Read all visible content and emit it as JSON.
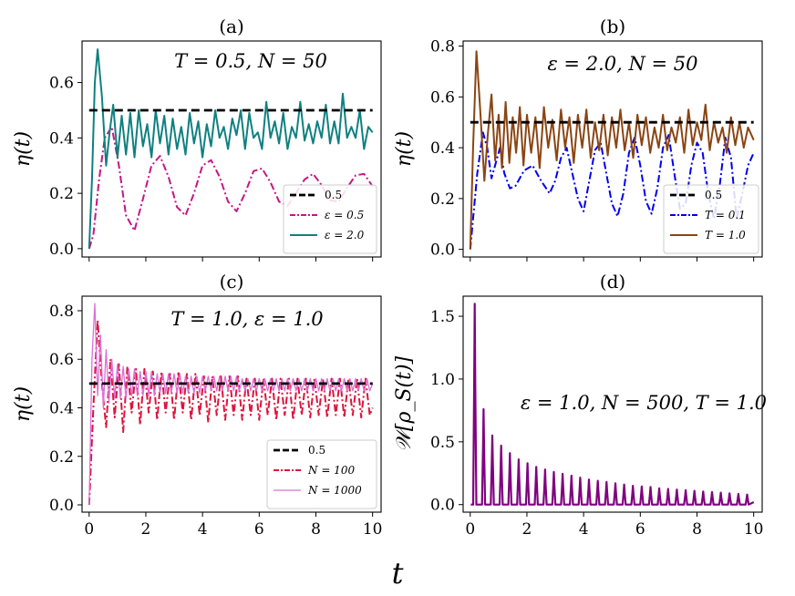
{
  "figure": {
    "shared_xlabel": "t"
  },
  "chart_data": [
    {
      "panel": "(a)",
      "type": "line",
      "title": "(a)",
      "annotation": "T = 0.5, N = 50",
      "ylabel": "η(t)",
      "xlim": [
        -0.25,
        10.3
      ],
      "ylim": [
        -0.03,
        0.75
      ],
      "xticks": [
        "0",
        "2",
        "4",
        "6",
        "8",
        "10"
      ],
      "show_xtick_labels": false,
      "yticks": [
        "0.0",
        "0.2",
        "0.4",
        "0.6"
      ],
      "grid": false,
      "legend_position": "lower-right",
      "series": [
        {
          "name": "0.5",
          "style": "dashed",
          "color": "#000000",
          "x": [
            0,
            10
          ],
          "y": [
            0.5,
            0.5
          ]
        },
        {
          "name": "ε = 0.5",
          "style": "dashdot",
          "color": "#c71585",
          "x": [
            0.0,
            0.15,
            0.35,
            0.55,
            0.8,
            1.05,
            1.3,
            1.6,
            1.9,
            2.2,
            2.5,
            2.8,
            3.1,
            3.4,
            3.7,
            4.0,
            4.3,
            4.6,
            4.9,
            5.2,
            5.5,
            5.8,
            6.1,
            6.4,
            6.7,
            7.0,
            7.3,
            7.6,
            7.9,
            8.2,
            8.5,
            8.8,
            9.1,
            9.4,
            9.7,
            10.0
          ],
          "y": [
            0.0,
            0.05,
            0.25,
            0.4,
            0.44,
            0.3,
            0.12,
            0.065,
            0.18,
            0.3,
            0.335,
            0.26,
            0.15,
            0.12,
            0.2,
            0.3,
            0.32,
            0.26,
            0.17,
            0.135,
            0.2,
            0.28,
            0.29,
            0.24,
            0.17,
            0.155,
            0.2,
            0.25,
            0.27,
            0.23,
            0.175,
            0.17,
            0.22,
            0.265,
            0.27,
            0.225
          ]
        },
        {
          "name": "ε = 2.0",
          "style": "solid",
          "color": "#108080",
          "x": [
            0.0,
            0.1,
            0.2,
            0.3,
            0.45,
            0.6,
            0.72,
            0.85,
            1.0,
            1.15,
            1.3,
            1.45,
            1.6,
            1.75,
            1.9,
            2.05,
            2.2,
            2.35,
            2.5,
            2.65,
            2.8,
            2.95,
            3.1,
            3.25,
            3.4,
            3.55,
            3.7,
            3.85,
            4.0,
            4.15,
            4.3,
            4.45,
            4.6,
            4.75,
            4.9,
            5.05,
            5.2,
            5.35,
            5.5,
            5.65,
            5.8,
            5.95,
            6.1,
            6.25,
            6.4,
            6.55,
            6.7,
            6.85,
            7.0,
            7.15,
            7.3,
            7.45,
            7.6,
            7.75,
            7.9,
            8.05,
            8.2,
            8.35,
            8.5,
            8.65,
            8.8,
            8.95,
            9.1,
            9.25,
            9.4,
            9.55,
            9.7,
            9.85,
            10.0
          ],
          "y": [
            0.0,
            0.25,
            0.6,
            0.72,
            0.55,
            0.3,
            0.42,
            0.52,
            0.33,
            0.48,
            0.34,
            0.49,
            0.33,
            0.5,
            0.37,
            0.45,
            0.33,
            0.5,
            0.38,
            0.48,
            0.34,
            0.47,
            0.36,
            0.44,
            0.34,
            0.49,
            0.38,
            0.46,
            0.33,
            0.45,
            0.37,
            0.5,
            0.4,
            0.44,
            0.36,
            0.47,
            0.41,
            0.5,
            0.36,
            0.49,
            0.4,
            0.42,
            0.36,
            0.53,
            0.4,
            0.46,
            0.38,
            0.49,
            0.36,
            0.44,
            0.4,
            0.53,
            0.39,
            0.45,
            0.38,
            0.46,
            0.4,
            0.52,
            0.38,
            0.46,
            0.38,
            0.56,
            0.4,
            0.44,
            0.4,
            0.5,
            0.36,
            0.44,
            0.42
          ]
        }
      ]
    },
    {
      "panel": "(b)",
      "type": "line",
      "title": "(b)",
      "annotation": "ε = 2.0, N = 50",
      "ylabel": "η(t)",
      "xlim": [
        -0.25,
        10.3
      ],
      "ylim": [
        -0.03,
        0.82
      ],
      "xticks": [
        "0",
        "2",
        "4",
        "6",
        "8",
        "10"
      ],
      "show_xtick_labels": false,
      "yticks": [
        "0.0",
        "0.2",
        "0.4",
        "0.6",
        "0.8"
      ],
      "grid": false,
      "legend_position": "lower-right",
      "series": [
        {
          "name": "0.5",
          "style": "dashed",
          "color": "#000000",
          "x": [
            0,
            10
          ],
          "y": [
            0.5,
            0.5
          ]
        },
        {
          "name": "T = 0.1",
          "style": "dashdot",
          "color": "#0000ee",
          "x": [
            0.0,
            0.25,
            0.45,
            0.6,
            0.75,
            0.9,
            1.05,
            1.2,
            1.4,
            1.6,
            1.9,
            2.2,
            2.5,
            2.8,
            3.0,
            3.2,
            3.4,
            3.6,
            3.8,
            4.0,
            4.2,
            4.4,
            4.6,
            4.8,
            5.0,
            5.2,
            5.4,
            5.6,
            5.8,
            6.0,
            6.2,
            6.4,
            6.6,
            6.8,
            7.0,
            7.2,
            7.4,
            7.6,
            7.8,
            8.0,
            8.2,
            8.4,
            8.6,
            8.8,
            9.0,
            9.2,
            9.4,
            9.6,
            9.8,
            10.0
          ],
          "y": [
            0.0,
            0.3,
            0.46,
            0.4,
            0.28,
            0.34,
            0.4,
            0.3,
            0.24,
            0.25,
            0.31,
            0.33,
            0.27,
            0.22,
            0.27,
            0.36,
            0.4,
            0.3,
            0.2,
            0.15,
            0.27,
            0.39,
            0.42,
            0.3,
            0.18,
            0.13,
            0.22,
            0.38,
            0.44,
            0.33,
            0.19,
            0.14,
            0.24,
            0.4,
            0.45,
            0.3,
            0.16,
            0.18,
            0.33,
            0.42,
            0.38,
            0.22,
            0.12,
            0.25,
            0.44,
            0.36,
            0.12,
            0.22,
            0.33,
            0.38
          ]
        },
        {
          "name": "T = 1.0",
          "style": "solid",
          "color": "#8b4513",
          "x": [
            0.0,
            0.1,
            0.22,
            0.35,
            0.5,
            0.62,
            0.75,
            0.88,
            1.0,
            1.12,
            1.25,
            1.38,
            1.5,
            1.62,
            1.75,
            1.88,
            2.0,
            2.15,
            2.3,
            2.45,
            2.6,
            2.75,
            2.9,
            3.05,
            3.2,
            3.35,
            3.5,
            3.65,
            3.8,
            3.95,
            4.1,
            4.25,
            4.4,
            4.55,
            4.7,
            4.85,
            5.0,
            5.15,
            5.3,
            5.45,
            5.6,
            5.75,
            5.9,
            6.05,
            6.2,
            6.35,
            6.5,
            6.65,
            6.8,
            6.95,
            7.1,
            7.25,
            7.4,
            7.55,
            7.7,
            7.85,
            8.0,
            8.15,
            8.3,
            8.45,
            8.6,
            8.75,
            8.9,
            9.05,
            9.2,
            9.35,
            9.5,
            9.65,
            9.8,
            10.0
          ],
          "y": [
            0.0,
            0.4,
            0.78,
            0.55,
            0.27,
            0.45,
            0.61,
            0.35,
            0.53,
            0.32,
            0.58,
            0.34,
            0.52,
            0.38,
            0.56,
            0.33,
            0.53,
            0.38,
            0.52,
            0.32,
            0.56,
            0.4,
            0.51,
            0.35,
            0.55,
            0.4,
            0.52,
            0.34,
            0.53,
            0.4,
            0.55,
            0.36,
            0.5,
            0.39,
            0.53,
            0.37,
            0.52,
            0.4,
            0.55,
            0.39,
            0.5,
            0.36,
            0.53,
            0.41,
            0.52,
            0.38,
            0.48,
            0.4,
            0.53,
            0.39,
            0.48,
            0.42,
            0.52,
            0.38,
            0.55,
            0.41,
            0.5,
            0.43,
            0.57,
            0.39,
            0.5,
            0.42,
            0.48,
            0.38,
            0.52,
            0.41,
            0.5,
            0.4,
            0.48,
            0.43
          ]
        }
      ]
    },
    {
      "panel": "(c)",
      "type": "line",
      "title": "(c)",
      "annotation": "T = 1.0, ε = 1.0",
      "ylabel": "η(t)",
      "xlim": [
        -0.25,
        10.3
      ],
      "ylim": [
        -0.03,
        0.86
      ],
      "xticks": [
        "0",
        "2",
        "4",
        "6",
        "8",
        "10"
      ],
      "show_xtick_labels": true,
      "yticks": [
        "0.0",
        "0.2",
        "0.4",
        "0.6",
        "0.8"
      ],
      "grid": false,
      "legend_position": "lower-right",
      "series": [
        {
          "name": "0.5",
          "style": "dashed",
          "color": "#000000",
          "x": [
            0,
            10
          ],
          "y": [
            0.5,
            0.5
          ]
        },
        {
          "name": "N = 100",
          "style": "dashdot",
          "color": "#dc143c",
          "x": [
            0.0,
            0.15,
            0.3,
            0.45,
            0.6,
            0.75,
            0.9,
            1.05,
            1.2,
            1.35,
            1.5,
            1.65,
            1.8,
            1.95,
            2.1,
            2.25,
            2.4,
            2.55,
            2.7,
            2.85,
            3.0,
            3.15,
            3.3,
            3.45,
            3.6,
            3.75,
            3.9,
            4.05,
            4.2,
            4.35,
            4.5,
            4.65,
            4.8,
            4.95,
            5.1,
            5.25,
            5.4,
            5.55,
            5.7,
            5.85,
            6.0,
            6.15,
            6.3,
            6.45,
            6.6,
            6.75,
            6.9,
            7.05,
            7.2,
            7.35,
            7.5,
            7.65,
            7.8,
            7.95,
            8.1,
            8.25,
            8.4,
            8.55,
            8.7,
            8.85,
            9.0,
            9.15,
            9.3,
            9.45,
            9.6,
            9.75,
            9.9,
            10.0
          ],
          "y": [
            0.0,
            0.4,
            0.76,
            0.5,
            0.32,
            0.6,
            0.36,
            0.58,
            0.3,
            0.57,
            0.38,
            0.56,
            0.33,
            0.56,
            0.38,
            0.55,
            0.35,
            0.55,
            0.38,
            0.54,
            0.35,
            0.55,
            0.38,
            0.54,
            0.35,
            0.54,
            0.37,
            0.53,
            0.34,
            0.53,
            0.37,
            0.53,
            0.35,
            0.53,
            0.37,
            0.53,
            0.35,
            0.52,
            0.37,
            0.52,
            0.35,
            0.52,
            0.37,
            0.52,
            0.35,
            0.52,
            0.37,
            0.52,
            0.35,
            0.52,
            0.37,
            0.52,
            0.36,
            0.52,
            0.37,
            0.52,
            0.36,
            0.52,
            0.37,
            0.52,
            0.36,
            0.52,
            0.37,
            0.52,
            0.36,
            0.52,
            0.37,
            0.4
          ]
        },
        {
          "name": "N = 1000",
          "style": "thin-solid",
          "color": "#da70d6",
          "x": [
            0.0,
            0.1,
            0.2,
            0.3,
            0.4,
            0.5,
            0.6,
            0.7,
            0.8,
            0.9,
            1.0,
            1.1,
            1.2,
            1.3,
            1.4,
            1.5,
            1.6,
            1.7,
            1.8,
            1.9,
            2.0,
            2.1,
            2.2,
            2.3,
            2.4,
            2.5,
            2.6,
            2.7,
            2.8,
            2.9,
            3.0,
            3.1,
            3.2,
            3.3,
            3.4,
            3.5,
            3.6,
            3.7,
            3.8,
            3.9,
            4.0,
            4.1,
            4.2,
            4.3,
            4.4,
            4.5,
            4.6,
            4.7,
            4.8,
            4.9,
            5.0,
            5.1,
            5.2,
            5.3,
            5.4,
            5.5,
            5.6,
            5.7,
            5.8,
            5.9,
            6.0,
            6.1,
            6.2,
            6.3,
            6.4,
            6.5,
            6.6,
            6.7,
            6.8,
            6.9,
            7.0,
            7.1,
            7.2,
            7.3,
            7.4,
            7.5,
            7.6,
            7.7,
            7.8,
            7.9,
            8.0,
            8.1,
            8.2,
            8.3,
            8.4,
            8.5,
            8.6,
            8.7,
            8.8,
            8.9,
            9.0,
            9.1,
            9.2,
            9.3,
            9.4,
            9.5,
            9.6,
            9.7,
            9.8,
            9.9,
            10.0
          ],
          "y": [
            0.0,
            0.6,
            0.83,
            0.45,
            0.7,
            0.4,
            0.64,
            0.42,
            0.6,
            0.44,
            0.58,
            0.44,
            0.57,
            0.44,
            0.56,
            0.45,
            0.56,
            0.45,
            0.55,
            0.45,
            0.55,
            0.45,
            0.55,
            0.45,
            0.54,
            0.46,
            0.54,
            0.46,
            0.54,
            0.46,
            0.54,
            0.46,
            0.54,
            0.46,
            0.53,
            0.46,
            0.53,
            0.46,
            0.53,
            0.46,
            0.53,
            0.47,
            0.53,
            0.47,
            0.53,
            0.47,
            0.53,
            0.47,
            0.53,
            0.47,
            0.53,
            0.47,
            0.53,
            0.47,
            0.52,
            0.47,
            0.52,
            0.47,
            0.52,
            0.47,
            0.52,
            0.47,
            0.52,
            0.47,
            0.52,
            0.47,
            0.52,
            0.47,
            0.52,
            0.47,
            0.52,
            0.47,
            0.52,
            0.47,
            0.52,
            0.47,
            0.52,
            0.47,
            0.52,
            0.47,
            0.52,
            0.47,
            0.52,
            0.47,
            0.52,
            0.47,
            0.52,
            0.47,
            0.52,
            0.47,
            0.52,
            0.47,
            0.52,
            0.47,
            0.52,
            0.47,
            0.52,
            0.47,
            0.52,
            0.47,
            0.5
          ]
        }
      ]
    },
    {
      "panel": "(d)",
      "type": "line",
      "title": "(d)",
      "annotation": "ε = 1.0, N = 500, T = 1.0",
      "ylabel": "𝒲[ρ_S(t)]",
      "xlim": [
        -0.25,
        10.3
      ],
      "ylim": [
        -0.06,
        1.66
      ],
      "xticks": [
        "0",
        "2",
        "4",
        "6",
        "8",
        "10"
      ],
      "show_xtick_labels": true,
      "yticks": [
        "0.0",
        "0.5",
        "1.0",
        "1.5"
      ],
      "grid": false,
      "legend_position": "none",
      "series": [
        {
          "name": "",
          "style": "spikes",
          "color": "#800080",
          "x": [
            0.16,
            0.47,
            0.78,
            1.09,
            1.4,
            1.71,
            2.02,
            2.33,
            2.64,
            2.95,
            3.26,
            3.57,
            3.88,
            4.19,
            4.5,
            4.81,
            5.12,
            5.43,
            5.74,
            6.05,
            6.36,
            6.67,
            6.98,
            7.29,
            7.6,
            7.91,
            8.22,
            8.53,
            8.84,
            9.15,
            9.46,
            9.77
          ],
          "y": [
            1.6,
            0.76,
            0.55,
            0.47,
            0.41,
            0.36,
            0.33,
            0.3,
            0.28,
            0.26,
            0.245,
            0.23,
            0.215,
            0.2,
            0.19,
            0.18,
            0.17,
            0.16,
            0.15,
            0.145,
            0.14,
            0.13,
            0.125,
            0.12,
            0.115,
            0.11,
            0.105,
            0.1,
            0.095,
            0.09,
            0.085,
            0.08
          ]
        }
      ]
    }
  ]
}
